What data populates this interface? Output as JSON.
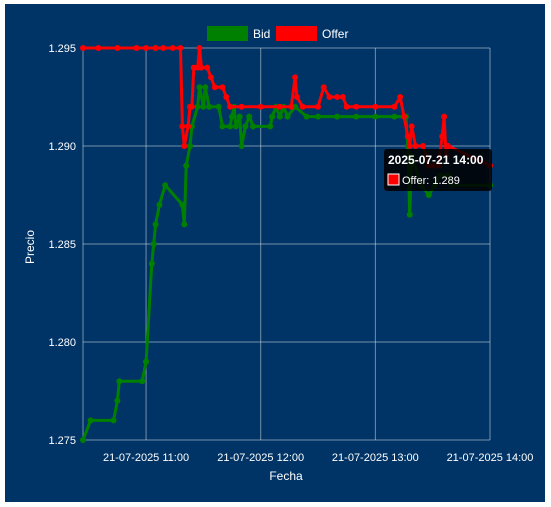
{
  "chart_data": {
    "type": "line",
    "xlabel": "Fecha",
    "ylabel": "Precio",
    "ylim": [
      1.275,
      1.295
    ],
    "yticks": [
      "1.275",
      "1.280",
      "1.285",
      "1.290",
      "1.295"
    ],
    "xlim": [
      "2025-07-21T10:27",
      "2025-07-21T14:00"
    ],
    "xticks": [
      {
        "t": "2025-07-21T11:00",
        "label": "21-07-2025 11:00"
      },
      {
        "t": "2025-07-21T12:00",
        "label": "21-07-2025 12:00"
      },
      {
        "t": "2025-07-21T13:00",
        "label": "21-07-2025 13:00"
      },
      {
        "t": "2025-07-21T14:00",
        "label": "21-07-2025 14:00"
      }
    ],
    "grid": true,
    "legend_position": "top",
    "series": [
      {
        "name": "Bid",
        "color": "#008000",
        "points": [
          [
            "2025-07-21T10:27",
            1.275
          ],
          [
            "2025-07-21T10:31",
            1.276
          ],
          [
            "2025-07-21T10:43",
            1.276
          ],
          [
            "2025-07-21T10:45",
            1.277
          ],
          [
            "2025-07-21T10:46",
            1.278
          ],
          [
            "2025-07-21T10:58",
            1.278
          ],
          [
            "2025-07-21T11:00",
            1.279
          ],
          [
            "2025-07-21T11:03",
            1.284
          ],
          [
            "2025-07-21T11:04",
            1.285
          ],
          [
            "2025-07-21T11:05",
            1.286
          ],
          [
            "2025-07-21T11:07",
            1.287
          ],
          [
            "2025-07-21T11:10",
            1.288
          ],
          [
            "2025-07-21T11:19",
            1.287
          ],
          [
            "2025-07-21T11:20",
            1.286
          ],
          [
            "2025-07-21T11:21",
            1.289
          ],
          [
            "2025-07-21T11:23",
            1.29
          ],
          [
            "2025-07-21T11:24",
            1.291
          ],
          [
            "2025-07-21T11:27",
            1.292
          ],
          [
            "2025-07-21T11:28",
            1.293
          ],
          [
            "2025-07-21T11:30",
            1.292
          ],
          [
            "2025-07-21T11:31",
            1.293
          ],
          [
            "2025-07-21T11:33",
            1.292
          ],
          [
            "2025-07-21T11:38",
            1.292
          ],
          [
            "2025-07-21T11:40",
            1.291
          ],
          [
            "2025-07-21T11:44",
            1.291
          ],
          [
            "2025-07-21T11:45",
            1.2915
          ],
          [
            "2025-07-21T11:46",
            1.292
          ],
          [
            "2025-07-21T11:47",
            1.291
          ],
          [
            "2025-07-21T11:49",
            1.2915
          ],
          [
            "2025-07-21T11:50",
            1.29
          ],
          [
            "2025-07-21T11:52",
            1.291
          ],
          [
            "2025-07-21T11:54",
            1.2915
          ],
          [
            "2025-07-21T11:56",
            1.291
          ],
          [
            "2025-07-21T12:05",
            1.291
          ],
          [
            "2025-07-21T12:06",
            1.2915
          ],
          [
            "2025-07-21T12:08",
            1.292
          ],
          [
            "2025-07-21T12:10",
            1.2915
          ],
          [
            "2025-07-21T12:12",
            1.292
          ],
          [
            "2025-07-21T12:14",
            1.2915
          ],
          [
            "2025-07-21T12:18",
            1.292
          ],
          [
            "2025-07-21T12:24",
            1.2915
          ],
          [
            "2025-07-21T12:30",
            1.2915
          ],
          [
            "2025-07-21T12:40",
            1.2915
          ],
          [
            "2025-07-21T12:50",
            1.2915
          ],
          [
            "2025-07-21T13:00",
            1.2915
          ],
          [
            "2025-07-21T13:10",
            1.2915
          ],
          [
            "2025-07-21T13:16",
            1.2915
          ],
          [
            "2025-07-21T13:17",
            1.29
          ],
          [
            "2025-07-21T13:18",
            1.2865
          ],
          [
            "2025-07-21T13:19",
            1.2895
          ],
          [
            "2025-07-21T13:24",
            1.288
          ],
          [
            "2025-07-21T13:28",
            1.2875
          ],
          [
            "2025-07-21T13:31",
            1.288
          ],
          [
            "2025-07-21T13:34",
            1.2885
          ],
          [
            "2025-07-21T13:38",
            1.2885
          ],
          [
            "2025-07-21T13:40",
            1.288
          ],
          [
            "2025-07-21T14:00",
            1.288
          ]
        ]
      },
      {
        "name": "Offer",
        "color": "#ff0000",
        "points": [
          [
            "2025-07-21T10:27",
            1.295
          ],
          [
            "2025-07-21T10:35",
            1.295
          ],
          [
            "2025-07-21T10:45",
            1.295
          ],
          [
            "2025-07-21T10:55",
            1.295
          ],
          [
            "2025-07-21T11:00",
            1.295
          ],
          [
            "2025-07-21T11:05",
            1.295
          ],
          [
            "2025-07-21T11:09",
            1.295
          ],
          [
            "2025-07-21T11:14",
            1.295
          ],
          [
            "2025-07-21T11:18",
            1.295
          ],
          [
            "2025-07-21T11:19",
            1.291
          ],
          [
            "2025-07-21T11:20",
            1.29
          ],
          [
            "2025-07-21T11:22",
            1.291
          ],
          [
            "2025-07-21T11:23",
            1.292
          ],
          [
            "2025-07-21T11:24",
            1.292
          ],
          [
            "2025-07-21T11:25",
            1.294
          ],
          [
            "2025-07-21T11:27",
            1.294
          ],
          [
            "2025-07-21T11:28",
            1.295
          ],
          [
            "2025-07-21T11:29",
            1.294
          ],
          [
            "2025-07-21T11:32",
            1.294
          ],
          [
            "2025-07-21T11:34",
            1.2935
          ],
          [
            "2025-07-21T11:36",
            1.293
          ],
          [
            "2025-07-21T11:40",
            1.293
          ],
          [
            "2025-07-21T11:42",
            1.2925
          ],
          [
            "2025-07-21T11:44",
            1.292
          ],
          [
            "2025-07-21T11:50",
            1.292
          ],
          [
            "2025-07-21T12:00",
            1.292
          ],
          [
            "2025-07-21T12:10",
            1.292
          ],
          [
            "2025-07-21T12:16",
            1.292
          ],
          [
            "2025-07-21T12:18",
            1.2935
          ],
          [
            "2025-07-21T12:19",
            1.2925
          ],
          [
            "2025-07-21T12:22",
            1.292
          ],
          [
            "2025-07-21T12:30",
            1.292
          ],
          [
            "2025-07-21T12:33",
            1.293
          ],
          [
            "2025-07-21T12:36",
            1.2925
          ],
          [
            "2025-07-21T12:40",
            1.2925
          ],
          [
            "2025-07-21T12:43",
            1.2925
          ],
          [
            "2025-07-21T12:45",
            1.292
          ],
          [
            "2025-07-21T12:50",
            1.292
          ],
          [
            "2025-07-21T13:00",
            1.292
          ],
          [
            "2025-07-21T13:10",
            1.292
          ],
          [
            "2025-07-21T13:13",
            1.2925
          ],
          [
            "2025-07-21T13:15",
            1.2915
          ],
          [
            "2025-07-21T13:17",
            1.2905
          ],
          [
            "2025-07-21T13:18",
            1.29
          ],
          [
            "2025-07-21T13:19",
            1.291
          ],
          [
            "2025-07-21T13:21",
            1.29
          ],
          [
            "2025-07-21T13:25",
            1.29
          ],
          [
            "2025-07-21T13:28",
            1.289
          ],
          [
            "2025-07-21T13:30",
            1.289
          ],
          [
            "2025-07-21T13:33",
            1.289
          ],
          [
            "2025-07-21T13:35",
            1.2905
          ],
          [
            "2025-07-21T13:36",
            1.2915
          ],
          [
            "2025-07-21T13:37",
            1.2895
          ],
          [
            "2025-07-21T13:38",
            1.29
          ],
          [
            "2025-07-21T14:00",
            1.289
          ]
        ]
      }
    ],
    "tooltip": {
      "title": "2025-07-21 14:00",
      "label": "Offer: 1.289",
      "color": "#ff0000"
    }
  }
}
